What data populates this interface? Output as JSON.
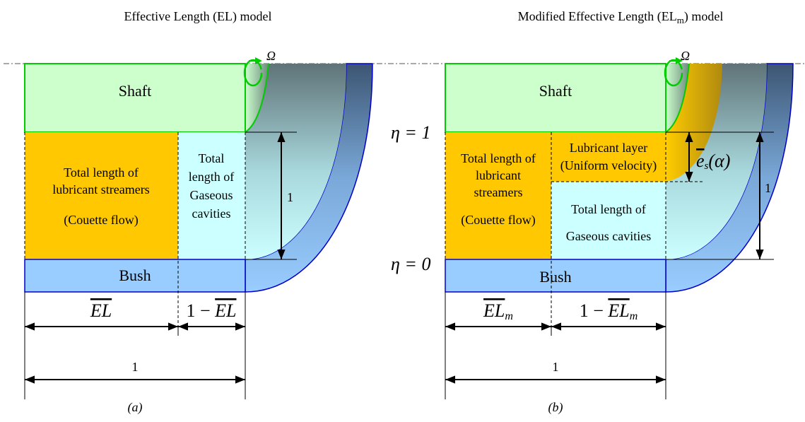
{
  "panels": [
    {
      "title": "Effective Length (EL) model",
      "omega": "Ω",
      "shaft": "Shaft",
      "streamers": [
        "Total length of",
        "lubricant streamers"
      ],
      "couette": "(Couette flow)",
      "cavities": [
        "Total",
        "length of",
        "Gaseous",
        "cavities"
      ],
      "height": "1",
      "bush": "Bush",
      "dim_left": "EL",
      "dim_right_prefix": "1 − ",
      "dim_right_symbol": "EL",
      "total": "1",
      "caption": "(a)"
    },
    {
      "title_main": "Modified Effective Length (EL",
      "title_sub": "m",
      "title_end": ") model",
      "omega": "Ω",
      "shaft": "Shaft",
      "eta_top": "η = 1",
      "eta_bottom": "η = 0",
      "streamers": [
        "Total length of",
        "lubricant",
        "streamers"
      ],
      "couette": "(Couette flow)",
      "layer": [
        "Lubricant layer",
        "(Uniform velocity)"
      ],
      "cavities": [
        "Total length of",
        "Gaseous cavities"
      ],
      "thickness": "e",
      "thickness_sub": "s",
      "thickness_arg": "(α)",
      "height": "1",
      "bush": "Bush",
      "dim_left": "EL",
      "dim_left_sub": "m",
      "dim_right_prefix": "1 − ",
      "dim_right_symbol": "EL",
      "dim_right_sub": "m",
      "total": "1",
      "caption": "(b)"
    }
  ]
}
